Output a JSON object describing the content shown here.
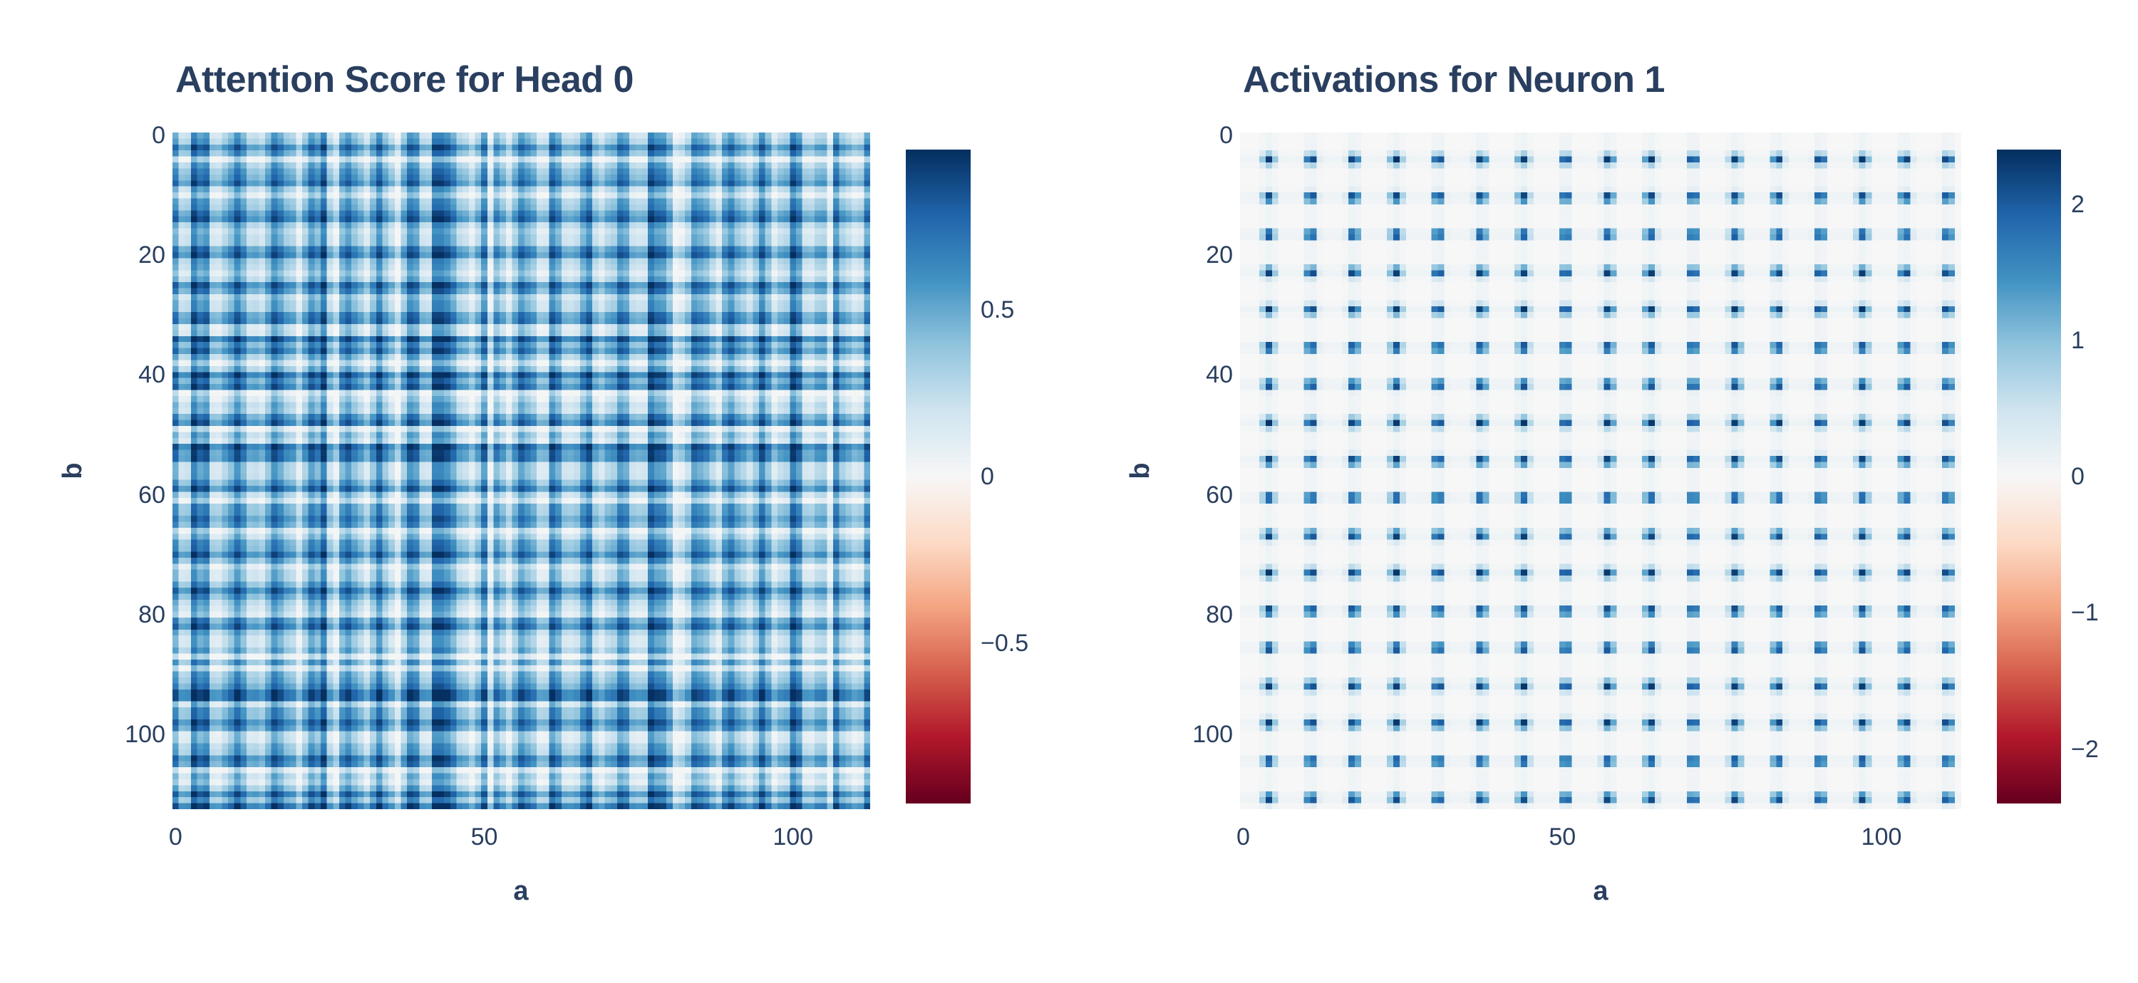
{
  "meta": {
    "background": "#ffffff",
    "text_color": "#2a3f5f",
    "colorscale_name": "RdBu",
    "colorscale_stops": [
      [
        0.0,
        [
          103,
          0,
          31
        ]
      ],
      [
        0.1,
        [
          178,
          24,
          43
        ]
      ],
      [
        0.2,
        [
          214,
          96,
          77
        ]
      ],
      [
        0.3,
        [
          244,
          165,
          130
        ]
      ],
      [
        0.4,
        [
          253,
          219,
          199
        ]
      ],
      [
        0.5,
        [
          247,
          247,
          247
        ]
      ],
      [
        0.6,
        [
          209,
          229,
          240
        ]
      ],
      [
        0.7,
        [
          146,
          197,
          222
        ]
      ],
      [
        0.8,
        [
          67,
          147,
          195
        ]
      ],
      [
        0.9,
        [
          33,
          102,
          172
        ]
      ],
      [
        1.0,
        [
          5,
          48,
          97
        ]
      ]
    ]
  },
  "chart_data": [
    {
      "type": "heatmap",
      "title": "Attention Score for Head 0",
      "xlabel": "a",
      "ylabel": "b",
      "n_rows": 113,
      "n_cols": 113,
      "x_range": [
        0,
        112
      ],
      "y_range": [
        0,
        112
      ],
      "y_axis_reversed": true,
      "grid": false,
      "legend": false,
      "zmin": -0.98,
      "zmax": 0.98,
      "zmid": 0,
      "x_ticks": {
        "values": [
          0,
          50,
          100
        ],
        "labels": [
          "0",
          "50",
          "100"
        ]
      },
      "y_ticks": {
        "values": [
          0,
          20,
          40,
          60,
          80,
          100
        ],
        "labels": [
          "0",
          "20",
          "40",
          "60",
          "80",
          "100"
        ]
      },
      "colorbar_ticks": {
        "values": [
          0.5,
          0,
          -0.5
        ],
        "labels": [
          "0.5",
          "0",
          "−0.5"
        ]
      },
      "pattern": {
        "kind": "separable_plaid",
        "formula": "z(a,b) = zmax * clamp(wa*f(a) + wb*g(b) - bias, 0.015, 1); f,g quasi-periodic profiles with period ~113/20 plus pinned dark/light lines",
        "weight_a": 0.62,
        "weight_b": 0.62,
        "bias": 0.24,
        "period": 5.65,
        "profile_a": {
          "phase": 0.7,
          "wobble_freq": 31,
          "wobble_amp": 0.85,
          "h2_amp": 0.13,
          "h2_phase": 2.1,
          "jitter": 0.12,
          "seed": 12.9898,
          "dark_lines": [
            3,
            24,
            42,
            43,
            77,
            100
          ],
          "light_lines": [
            36,
            51,
            81,
            106
          ]
        },
        "profile_b": {
          "phase": 3.9,
          "wobble_freq": 29,
          "wobble_amp": 0.8,
          "h2_amp": 0.14,
          "h2_phase": 0.6,
          "jitter": 0.12,
          "seed": 78.233,
          "dark_lines": [
            34,
            40,
            52,
            93,
            94,
            112
          ],
          "light_lines": [
            43,
            49,
            87,
            106
          ]
        }
      }
    },
    {
      "type": "heatmap",
      "title": "Activations for Neuron 1",
      "xlabel": "a",
      "ylabel": "b",
      "n_rows": 113,
      "n_cols": 113,
      "x_range": [
        0,
        112
      ],
      "y_range": [
        0,
        112
      ],
      "y_axis_reversed": true,
      "grid": false,
      "legend": false,
      "zmin": -2.4,
      "zmax": 2.4,
      "zmid": 0,
      "x_ticks": {
        "values": [
          0,
          50,
          100
        ],
        "labels": [
          "0",
          "50",
          "100"
        ]
      },
      "y_ticks": {
        "values": [
          0,
          20,
          40,
          60,
          80,
          100
        ],
        "labels": [
          "0",
          "20",
          "40",
          "60",
          "80",
          "100"
        ]
      },
      "colorbar_ticks": {
        "values": [
          2,
          1,
          0,
          -1,
          -2
        ],
        "labels": [
          "2",
          "1",
          "0",
          "−1",
          "−2"
        ]
      },
      "pattern": {
        "kind": "dot_grid",
        "formula": "z(a,b) = amp * max(lobe_x(a), base) * max(lobe_y(b), base); lobe(t) = relu(cos(2*pi*(t-t0)/period))^sharp  (ReLU'd product of cosines -> grid of positive blue dots)",
        "amp": 2.35,
        "sharp": 1.7,
        "period_x": 6.647,
        "period_y": 6.278,
        "x0": 4.0,
        "y0": 4.0,
        "baseline": 0.05,
        "noise": 0.05
      }
    }
  ]
}
